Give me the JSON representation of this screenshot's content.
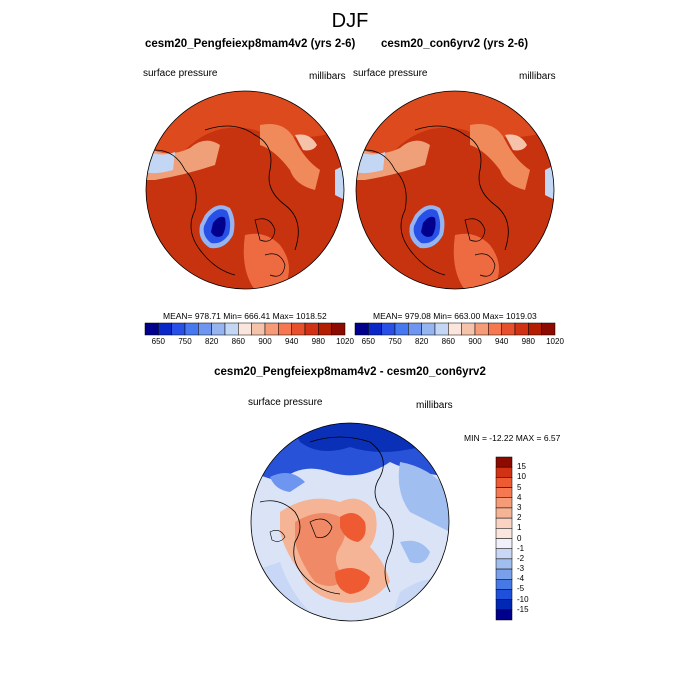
{
  "title": "DJF",
  "panels": [
    {
      "title": "cesm20_Pengfeiexp8mam4v2 (yrs 2-6)",
      "left_label": "surface pressure",
      "right_label": "millibars",
      "stats": "MEAN= 978.71   Min= 666.41   Max= 1018.52"
    },
    {
      "title": "cesm20_con6yrv2 (yrs 2-6)",
      "left_label": "surface pressure",
      "right_label": "millibars",
      "stats": "MEAN= 979.08   Min= 663.00   Max= 1019.03"
    }
  ],
  "top_colorbar": {
    "colors": [
      "#00008c",
      "#0a28c8",
      "#2850e6",
      "#4678f0",
      "#6e96f0",
      "#96b4f0",
      "#c3d7f5",
      "#fae6dc",
      "#f5c3aa",
      "#f59b78",
      "#f57850",
      "#e6502d",
      "#d23214",
      "#b41e00",
      "#8c0a00"
    ],
    "labels": [
      "650",
      "750",
      "820",
      "860",
      "900",
      "940",
      "980",
      "1020"
    ]
  },
  "diff": {
    "title": "cesm20_Pengfeiexp8mam4v2 - cesm20_con6yrv2",
    "left_label": "surface pressure",
    "right_label": "millibars",
    "stats": "MIN = -12.22 MAX =   6.57",
    "colorbar": {
      "colors": [
        "#8c0a00",
        "#d23214",
        "#ee5a32",
        "#f57850",
        "#f59b78",
        "#f5b496",
        "#fad2c3",
        "#fae6dc",
        "#f0f0fa",
        "#c8d7f5",
        "#a0bef0",
        "#78a0eb",
        "#4678e6",
        "#1e50dc",
        "#0028b4",
        "#00008c"
      ],
      "labels": [
        "15",
        "10",
        "5",
        "4",
        "3",
        "2",
        "1",
        "0",
        "-1",
        "-2",
        "-3",
        "-4",
        "-5",
        "-10",
        "-15"
      ]
    }
  }
}
